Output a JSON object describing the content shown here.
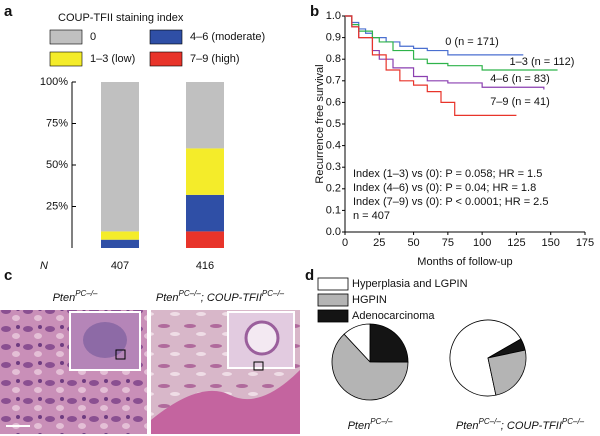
{
  "chart_data": [
    {
      "type": "bar",
      "panel": "a",
      "stacked": true,
      "legend_title": "COUP-TFII staining index",
      "x_label": "N",
      "categories": [
        "407",
        "416"
      ],
      "series": [
        {
          "name": "0",
          "color": "#c0c0c0",
          "values": [
            90,
            40
          ]
        },
        {
          "name": "1–3 (low)",
          "color": "#f4ec2a",
          "values": [
            5,
            28
          ]
        },
        {
          "name": "4–6 (moderate)",
          "color": "#2f4fa6",
          "values": [
            5,
            22
          ]
        },
        {
          "name": "7–9 (high)",
          "color": "#e8342a",
          "values": [
            0,
            10
          ]
        }
      ],
      "ylim": [
        0,
        100
      ],
      "yticks": [
        {
          "value": 25,
          "label": "25%"
        },
        {
          "value": 50,
          "label": "50%"
        },
        {
          "value": 75,
          "label": "75%"
        },
        {
          "value": 100,
          "label": "100%"
        }
      ]
    },
    {
      "type": "line",
      "panel": "b",
      "step": true,
      "y_label": "Recurrence free survival",
      "x_label": "Months of follow-up",
      "series": [
        {
          "name": "0 (n = 171)",
          "color": "#4a6fd0",
          "x": [
            0,
            5,
            10,
            15,
            20,
            30,
            40,
            50,
            60,
            75,
            90,
            130
          ],
          "values": [
            1,
            0.97,
            0.94,
            0.92,
            0.9,
            0.88,
            0.86,
            0.85,
            0.84,
            0.82,
            0.82,
            0.82
          ]
        },
        {
          "name": "1–3 (n = 112)",
          "color": "#2eb34a",
          "x": [
            0,
            5,
            10,
            20,
            25,
            35,
            50,
            60,
            75,
            100,
            155
          ],
          "values": [
            1,
            0.96,
            0.93,
            0.9,
            0.88,
            0.84,
            0.8,
            0.78,
            0.77,
            0.75,
            0.75
          ]
        },
        {
          "name": "4–6 (n = 83)",
          "color": "#8a3fb0",
          "x": [
            0,
            5,
            10,
            20,
            25,
            35,
            50,
            60,
            75,
            100,
            145
          ],
          "values": [
            1,
            0.95,
            0.9,
            0.84,
            0.8,
            0.76,
            0.72,
            0.7,
            0.69,
            0.67,
            0.66
          ]
        },
        {
          "name": "7–9 (n = 41)",
          "color": "#e8342a",
          "x": [
            0,
            5,
            10,
            20,
            30,
            40,
            50,
            60,
            70,
            80,
            125
          ],
          "values": [
            1,
            0.95,
            0.9,
            0.82,
            0.75,
            0.7,
            0.68,
            0.65,
            0.6,
            0.54,
            0.54
          ]
        }
      ],
      "annotations": [
        "Index (1–3) vs (0): P = 0.058; HR = 1.5",
        "Index (4–6) vs (0): P = 0.04; HR = 1.8",
        "Index (7–9) vs (0): P < 0.0001; HR = 2.5",
        "n = 407"
      ],
      "xlim": [
        0,
        175
      ],
      "xticks": [
        0,
        25,
        50,
        75,
        100,
        125,
        150,
        175
      ],
      "ylim": [
        0,
        1
      ],
      "yticks": [
        {
          "value": 0,
          "label": "0.0"
        },
        0.1,
        0.2,
        0.3,
        0.4,
        0.5,
        0.6,
        0.7,
        0.8,
        0.9,
        {
          "value": 1,
          "label": "1.0"
        }
      ]
    },
    {
      "type": "pie",
      "panel": "d",
      "categories": [
        "Hyperplasia and LGPIN",
        "HGPIN",
        "Adenocarcinoma"
      ],
      "colors": [
        "#ffffff",
        "#b4b4b4",
        "#141414"
      ],
      "pies": [
        {
          "label": [
            {
              "text": "Pten",
              "sup": false
            },
            {
              "text": "PC–/–",
              "sup": true
            }
          ],
          "values": [
            12,
            63,
            25
          ]
        },
        {
          "label": [
            {
              "text": "Pten",
              "sup": false
            },
            {
              "text": "PC–/–",
              "sup": true
            },
            {
              "text": "; COUP-TFII",
              "sup": false
            },
            {
              "text": "PC–/–",
              "sup": true
            }
          ],
          "values": [
            70,
            25,
            5
          ]
        }
      ]
    }
  ],
  "panel_c": {
    "panel": "c",
    "images": [
      {
        "label": [
          {
            "text": "Pten",
            "sup": false
          },
          {
            "text": "PC–/–",
            "sup": true
          }
        ]
      },
      {
        "label": [
          {
            "text": "Pten",
            "sup": false
          },
          {
            "text": "PC–/–",
            "sup": true
          },
          {
            "text": "; COUP-TFII",
            "sup": false
          },
          {
            "text": "PC–/–",
            "sup": true
          }
        ]
      }
    ]
  }
}
